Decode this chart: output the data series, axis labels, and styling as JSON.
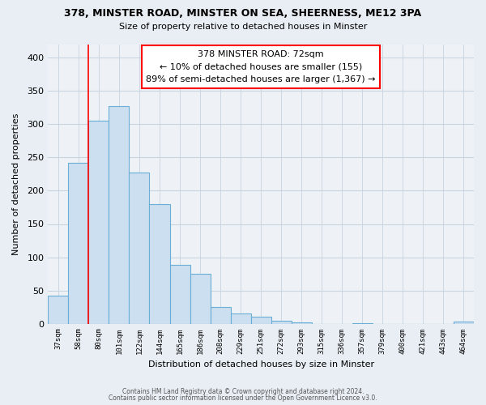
{
  "title1": "378, MINSTER ROAD, MINSTER ON SEA, SHEERNESS, ME12 3PA",
  "title2": "Size of property relative to detached houses in Minster",
  "xlabel": "Distribution of detached houses by size in Minster",
  "ylabel": "Number of detached properties",
  "bar_labels": [
    "37sqm",
    "58sqm",
    "80sqm",
    "101sqm",
    "122sqm",
    "144sqm",
    "165sqm",
    "186sqm",
    "208sqm",
    "229sqm",
    "251sqm",
    "272sqm",
    "293sqm",
    "315sqm",
    "336sqm",
    "357sqm",
    "379sqm",
    "400sqm",
    "421sqm",
    "443sqm",
    "464sqm"
  ],
  "bar_values": [
    42,
    242,
    306,
    327,
    228,
    180,
    88,
    75,
    25,
    15,
    10,
    4,
    2,
    0,
    0,
    1,
    0,
    0,
    0,
    0,
    3
  ],
  "bar_color": "#ccdff0",
  "bar_edge_color": "#6aaed6",
  "ylim": [
    0,
    420
  ],
  "yticks": [
    0,
    50,
    100,
    150,
    200,
    250,
    300,
    350,
    400
  ],
  "red_line_x": 1.5,
  "property_line_label": "378 MINSTER ROAD: 72sqm",
  "annotation_line1": "← 10% of detached houses are smaller (155)",
  "annotation_line2": "89% of semi-detached houses are larger (1,367) →",
  "footer1": "Contains HM Land Registry data © Crown copyright and database right 2024.",
  "footer2": "Contains public sector information licensed under the Open Government Licence v3.0.",
  "bg_color": "#e8eef4",
  "plot_bg_color": "#eef2f7",
  "grid_color": "#c8d4e0"
}
